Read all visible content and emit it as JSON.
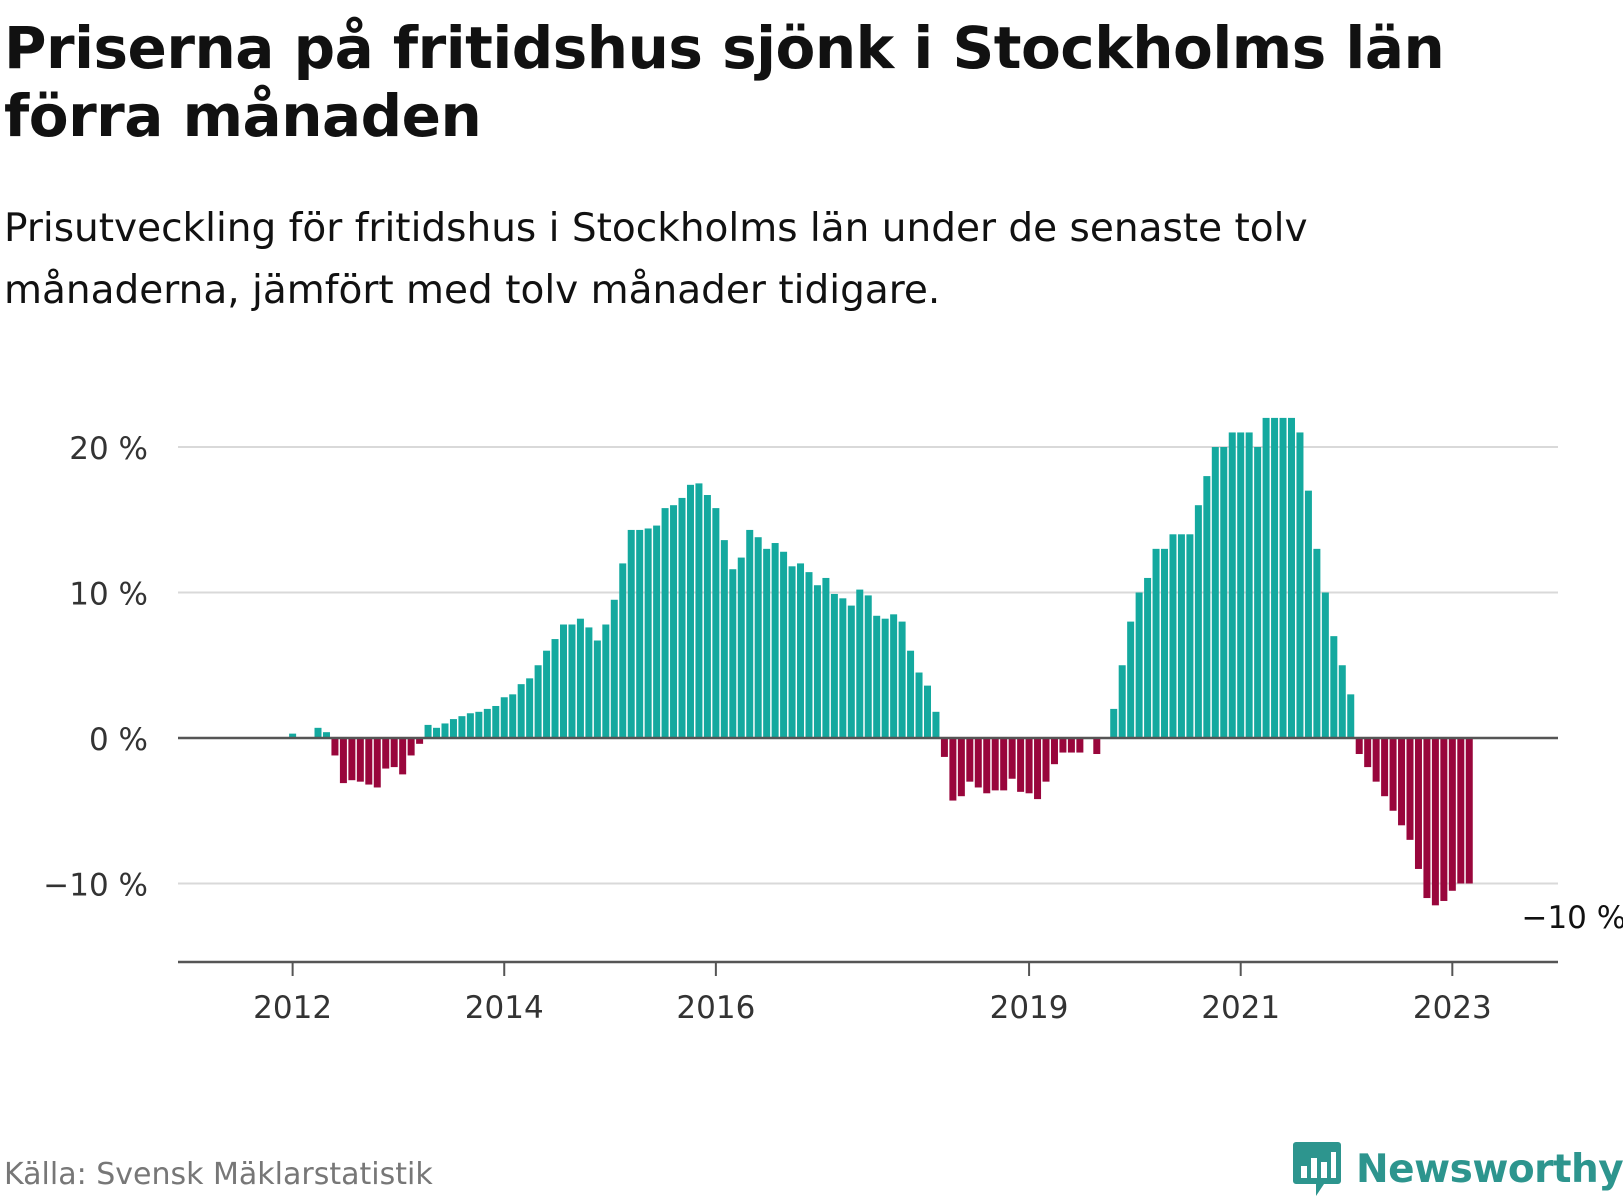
{
  "header": {
    "title": "Priserna på fritidshus sjönk i Stockholms län förra månaden",
    "subtitle": "Prisutveckling för fritidshus i Stockholms län under de senaste tolv månaderna, jämfört med tolv månader tidigare."
  },
  "footer": {
    "source": "Källa: Svensk Mäklarstatistik",
    "brand": "Newsworthy",
    "brand_icon": "bar-chart-speech-bubble-icon"
  },
  "colors": {
    "positive": "#14a99f",
    "negative": "#99063c",
    "grid": "#d9d9d9",
    "zero_line": "#555555",
    "axis_text": "#333333"
  },
  "chart_data": {
    "type": "bar",
    "title": "Priserna på fritidshus sjönk i Stockholms län förra månaden",
    "subtitle": "Prisutveckling för fritidshus i Stockholms län under de senaste tolv månaderna, jämfört med tolv månader tidigare.",
    "xlabel": "",
    "ylabel": "",
    "unit": "%",
    "ylim": [
      -15,
      20
    ],
    "yticks": [
      {
        "value": 20,
        "label": "20 %"
      },
      {
        "value": 10,
        "label": "10 %"
      },
      {
        "value": 0,
        "label": "0 %"
      },
      {
        "value": -10,
        "label": "−10 %"
      }
    ],
    "xticks": [
      {
        "index": 8,
        "label": "2012"
      },
      {
        "index": 33,
        "label": "2014"
      },
      {
        "index": 58,
        "label": "2016"
      },
      {
        "index": 95,
        "label": "2019"
      },
      {
        "index": 120,
        "label": "2021"
      },
      {
        "index": 145,
        "label": "2023"
      }
    ],
    "grid": true,
    "annotation": {
      "label": "−10 %",
      "index": 155
    },
    "values": [
      null,
      null,
      null,
      null,
      null,
      null,
      null,
      null,
      0.3,
      0,
      0,
      0.7,
      0.4,
      -1.2,
      -3.1,
      -2.9,
      -3.0,
      -3.2,
      -3.4,
      -2.1,
      -2.0,
      -2.5,
      -1.2,
      -0.4,
      0.9,
      0.7,
      1.0,
      1.3,
      1.5,
      1.7,
      1.8,
      2.0,
      2.2,
      2.8,
      3.0,
      3.7,
      4.1,
      5.0,
      6.0,
      6.8,
      7.8,
      7.8,
      8.2,
      7.6,
      6.7,
      7.8,
      9.5,
      12.0,
      14.3,
      14.3,
      14.4,
      14.6,
      15.8,
      16.0,
      16.5,
      17.4,
      17.5,
      16.7,
      15.8,
      13.6,
      11.6,
      12.4,
      14.3,
      13.8,
      13.0,
      13.4,
      12.8,
      11.8,
      12.0,
      11.4,
      10.5,
      11.0,
      9.9,
      9.6,
      9.1,
      10.2,
      9.8,
      8.4,
      8.2,
      8.5,
      8.0,
      6.0,
      4.5,
      3.6,
      1.8,
      -1.3,
      -4.3,
      -4.0,
      -3.0,
      -3.4,
      -3.8,
      -3.6,
      -3.6,
      -2.8,
      -3.7,
      -3.8,
      -4.2,
      -3.0,
      -1.8,
      -1.0,
      -1.0,
      -1.0,
      0,
      -1.1,
      0,
      2.0,
      5.0,
      8.0,
      10.0,
      11.0,
      13.0,
      13.0,
      14.0,
      14.0,
      14.0,
      16.0,
      18.0,
      20.0,
      20.0,
      21.0,
      21.0,
      21.0,
      20.0,
      22.0,
      22.0,
      22.0,
      22.0,
      21.0,
      17.0,
      13.0,
      10.0,
      7.0,
      5.0,
      3.0,
      -1.1,
      -2.0,
      -3.0,
      -4.0,
      -5.0,
      -6.0,
      -7.0,
      -9.0,
      -11.0,
      -11.5,
      -11.2,
      -10.5,
      -10.0,
      -10.0
    ]
  }
}
